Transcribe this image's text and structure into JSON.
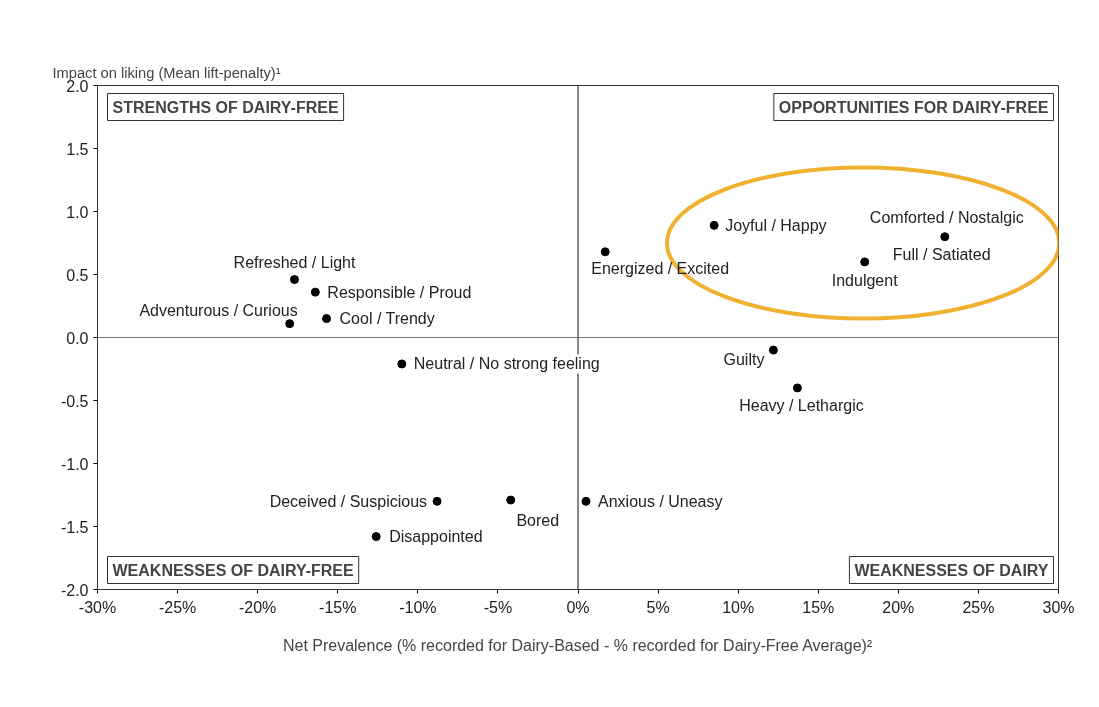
{
  "chart_data": {
    "type": "scatter",
    "xlabel": "Net Prevalence (% recorded for Dairy-Based - % recorded for Dairy-Free Average)²",
    "ylabel": "Impact on liking (Mean lift-penalty)¹",
    "x": [
      -17.7,
      -16.4,
      -18.0,
      -15.7,
      1.7,
      8.5,
      22.9,
      17.9,
      -11.0,
      12.2,
      13.7,
      -8.8,
      -4.2,
      0.5,
      -12.6
    ],
    "values": [
      0.46,
      0.36,
      0.11,
      0.15,
      0.68,
      0.89,
      0.8,
      0.6,
      -0.21,
      -0.1,
      -0.4,
      -1.3,
      -1.29,
      -1.3,
      -1.58
    ],
    "color": "#000000",
    "marker": "circle",
    "xlim": [
      -30,
      30
    ],
    "xticks": [
      {
        "value": -30,
        "label": "-30%"
      },
      {
        "value": -25,
        "label": "-25%"
      },
      {
        "value": -20,
        "label": "-20%"
      },
      {
        "value": -15,
        "label": "-15%"
      },
      {
        "value": -10,
        "label": "-10%"
      },
      {
        "value": -5,
        "label": "-5%"
      },
      {
        "value": 0,
        "label": "0%"
      },
      {
        "value": 5,
        "label": "5%"
      },
      {
        "value": 10,
        "label": "10%"
      },
      {
        "value": 15,
        "label": "15%"
      },
      {
        "value": 20,
        "label": "20%"
      },
      {
        "value": 25,
        "label": "25%"
      },
      {
        "value": 30,
        "label": "30%"
      }
    ],
    "ylim": [
      -2,
      2
    ],
    "yticks": [
      {
        "value": -2,
        "label": "-2.0"
      },
      {
        "value": -1.5,
        "label": "-1.5"
      },
      {
        "value": -1,
        "label": "-1.0"
      },
      {
        "value": -0.5,
        "label": "-0.5"
      },
      {
        "value": 0,
        "label": "0.0"
      },
      {
        "value": 0.5,
        "label": "0.5"
      },
      {
        "value": 1,
        "label": "1.0"
      },
      {
        "value": 1.5,
        "label": "1.5"
      },
      {
        "value": 2,
        "label": "2.0"
      }
    ],
    "grid": false,
    "ref_lines": [
      {
        "axis": "x",
        "value": 0,
        "color": "#333333"
      },
      {
        "axis": "y",
        "value": 0,
        "color": "#777777"
      }
    ],
    "annotations": [
      {
        "text": "Refreshed / Light",
        "x": -17.7,
        "y": 0.46
      },
      {
        "text": "Responsible / Proud",
        "x": -16.4,
        "y": 0.36
      },
      {
        "text": "Adventurous / Curious",
        "x": -18.0,
        "y": 0.11
      },
      {
        "text": "Cool / Trendy",
        "x": -15.7,
        "y": 0.15
      },
      {
        "text": "Energized / Excited",
        "x": 1.7,
        "y": 0.68
      },
      {
        "text": "Joyful / Happy",
        "x": 8.5,
        "y": 0.89
      },
      {
        "text": "Comforted / Nostalgic",
        "x": 22.9,
        "y": 0.8
      },
      {
        "text": "Full / Satiated",
        "x": 22.9,
        "y": 0.8
      },
      {
        "text": "Indulgent",
        "x": 17.9,
        "y": 0.6
      },
      {
        "text": "Neutral / No strong feeling",
        "x": -11.0,
        "y": -0.21
      },
      {
        "text": "Guilty",
        "x": 12.2,
        "y": -0.1
      },
      {
        "text": "Heavy / Lethargic",
        "x": 13.7,
        "y": -0.4
      },
      {
        "text": "Deceived / Suspicious",
        "x": -8.8,
        "y": -1.3
      },
      {
        "text": "Bored",
        "x": -4.2,
        "y": -1.29
      },
      {
        "text": "Anxious / Uneasy",
        "x": 0.5,
        "y": -1.3
      },
      {
        "text": "Disappointed",
        "x": -12.6,
        "y": -1.58
      },
      "STRENGTHS OF DAIRY-FREE",
      "OPPORTUNITIES FOR DAIRY-FREE",
      "WEAKNESSES OF DAIRY-FREE",
      "WEAKNESSES OF DAIRY"
    ]
  }
}
